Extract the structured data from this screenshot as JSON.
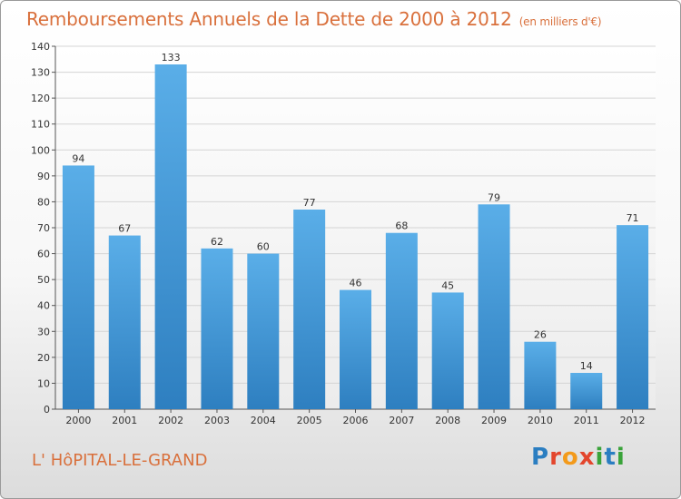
{
  "header": {
    "title": "Remboursements Annuels de la Dette de 2000 à 2012",
    "unit": "(en milliers d'€)"
  },
  "footer": {
    "commune": "L' HôPITAL-LE-GRAND",
    "logo_letters": [
      "P",
      "r",
      "o",
      "x",
      "i",
      "t",
      "i"
    ]
  },
  "colors": {
    "title": "#d9703c",
    "bar_top": "#5aaee8",
    "bar_bottom": "#2e7fc0"
  },
  "chart_data": {
    "type": "bar",
    "categories": [
      "2000",
      "2001",
      "2002",
      "2003",
      "2004",
      "2005",
      "2006",
      "2007",
      "2008",
      "2009",
      "2010",
      "2011",
      "2012"
    ],
    "values": [
      94,
      67,
      133,
      62,
      60,
      77,
      46,
      68,
      45,
      79,
      26,
      14,
      71
    ],
    "title": "Remboursements Annuels de la Dette de 2000 à 2012",
    "ylabel": "",
    "xlabel": "",
    "ylim": [
      0,
      140
    ],
    "yticks": [
      0,
      10,
      20,
      30,
      40,
      50,
      60,
      70,
      80,
      90,
      100,
      110,
      120,
      130,
      140
    ],
    "grid": true,
    "legend": "none"
  }
}
